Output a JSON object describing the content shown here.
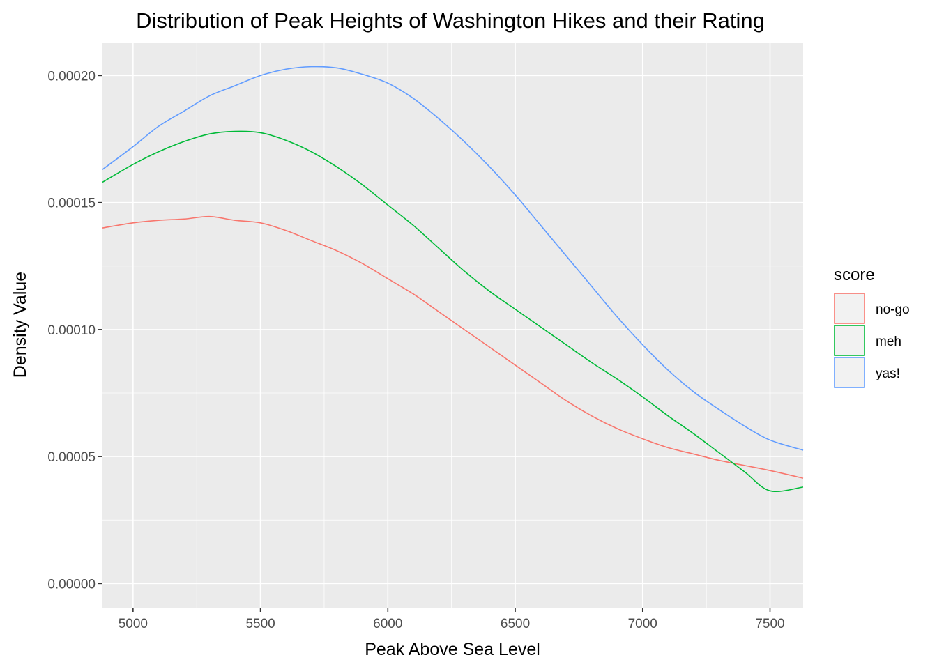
{
  "chart_data": {
    "type": "line",
    "title": "Distribution of Peak Heights of Washington Hikes and their Rating",
    "xlabel": "Peak Above Sea Level",
    "ylabel": "Density Value",
    "xlim": [
      4880,
      7630
    ],
    "ylim": [
      -9.5e-06,
      0.000213
    ],
    "x_ticks": [
      5000,
      5500,
      6000,
      6500,
      7000,
      7500
    ],
    "x_tick_labels": [
      "5000",
      "5500",
      "6000",
      "6500",
      "7000",
      "7500"
    ],
    "y_ticks": [
      0,
      5e-05,
      0.0001,
      0.00015,
      0.0002
    ],
    "y_tick_labels": [
      "0.00000",
      "0.00005",
      "0.00010",
      "0.00015",
      "0.00020"
    ],
    "grid": true,
    "legend": {
      "title": "score",
      "position": "right"
    },
    "series": [
      {
        "name": "no-go",
        "color": "#F8766D",
        "x": [
          4880,
          5000,
          5100,
          5200,
          5300,
          5400,
          5500,
          5600,
          5700,
          5800,
          5900,
          6000,
          6100,
          6200,
          6300,
          6400,
          6500,
          6600,
          6700,
          6800,
          6900,
          7000,
          7100,
          7200,
          7300,
          7400,
          7500,
          7630
        ],
        "y": [
          0.00014,
          0.000142,
          0.000143,
          0.0001435,
          0.0001445,
          0.000143,
          0.000142,
          0.000139,
          0.000135,
          0.000131,
          0.000126,
          0.00012,
          0.000114,
          0.000107,
          0.0001,
          9.3e-05,
          8.6e-05,
          7.9e-05,
          7.2e-05,
          6.6e-05,
          6.1e-05,
          5.7e-05,
          5.35e-05,
          5.1e-05,
          4.85e-05,
          4.65e-05,
          4.45e-05,
          4.15e-05
        ]
      },
      {
        "name": "meh",
        "color": "#00BA38",
        "x": [
          4880,
          5000,
          5100,
          5200,
          5300,
          5400,
          5500,
          5600,
          5700,
          5800,
          5900,
          6000,
          6100,
          6200,
          6300,
          6400,
          6500,
          6600,
          6700,
          6800,
          6900,
          7000,
          7100,
          7200,
          7300,
          7400,
          7500,
          7630
        ],
        "y": [
          0.000158,
          0.000165,
          0.00017,
          0.000174,
          0.000177,
          0.000178,
          0.0001775,
          0.0001745,
          0.00017,
          0.000164,
          0.000157,
          0.000149,
          0.000141,
          0.000132,
          0.000123,
          0.000115,
          0.000108,
          0.000101,
          9.4e-05,
          8.7e-05,
          8.05e-05,
          7.35e-05,
          6.6e-05,
          5.9e-05,
          5.15e-05,
          4.4e-05,
          3.65e-05,
          3.8e-05
        ]
      },
      {
        "name": "yas!",
        "color": "#619CFF",
        "x": [
          4880,
          5000,
          5100,
          5200,
          5300,
          5400,
          5500,
          5600,
          5700,
          5800,
          5900,
          6000,
          6100,
          6200,
          6300,
          6400,
          6500,
          6600,
          6700,
          6800,
          6900,
          7000,
          7100,
          7200,
          7300,
          7400,
          7500,
          7630
        ],
        "y": [
          0.000163,
          0.000172,
          0.00018,
          0.000186,
          0.000192,
          0.000196,
          0.0002,
          0.0002025,
          0.0002035,
          0.000203,
          0.0002005,
          0.000197,
          0.000191,
          0.000183,
          0.000174,
          0.000164,
          0.000153,
          0.000141,
          0.000129,
          0.000117,
          0.000105,
          9.4e-05,
          8.4e-05,
          7.55e-05,
          6.85e-05,
          6.2e-05,
          5.65e-05,
          5.25e-05
        ]
      }
    ]
  }
}
